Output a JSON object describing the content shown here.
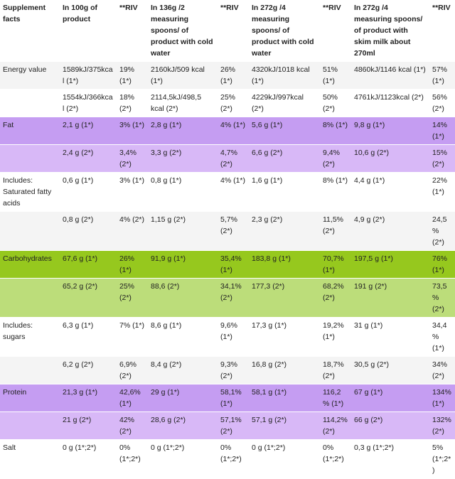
{
  "header": [
    "Supplement facts",
    "In 100g of product",
    "**RIV",
    "In 136g /2 measuring spoons/ of product with cold water",
    "**RIV",
    "In 272g /4 measuring spoons/ of product with cold water",
    "**RIV",
    "In 272g /4 measuring spoons/ of product with skim milk about 270ml",
    "**RIV"
  ],
  "rows": [
    {
      "style": "bg-grey",
      "cells": [
        "Energy value",
        "1589kJ/375kcal (1*)",
        "19% (1*)",
        "2160kJ/509 kcal (1*)",
        "26% (1*)",
        "4320kJ/1018 kcal (1*)",
        "51% (1*)",
        "4860kJ/1146 kcal (1*)",
        "57% (1*)"
      ]
    },
    {
      "style": "bg-white",
      "cells": [
        "",
        "1554kJ/366kcal (2*)",
        "18% (2*)",
        "2114,5kJ/498,5 kcal (2*)",
        "25% (2*)",
        "4229kJ/997kcal (2*)",
        "50% (2*)",
        "4761kJ/1123kcal (2*)",
        "56% (2*)"
      ]
    },
    {
      "style": "bg-purple",
      "cells": [
        "Fat",
        "2,1 g (1*)",
        "3% (1*)",
        "2,8 g (1*)",
        "4% (1*)",
        "5,6 g (1*)",
        "8% (1*)",
        "9,8 g (1*)",
        "14% (1*)"
      ]
    },
    {
      "style": "bg-purple-light",
      "cells": [
        "",
        "2,4 g (2*)",
        "3,4% (2*)",
        "3,3 g (2*)",
        "4,7% (2*)",
        "6,6 g (2*)",
        "9,4% (2*)",
        "10,6 g (2*)",
        "15% (2*)"
      ]
    },
    {
      "style": "bg-white",
      "cells": [
        "Includes: Saturated fatty acids",
        "0,6 g (1*)",
        "3% (1*)",
        "0,8 g (1*)",
        "4% (1*)",
        "1,6 g (1*)",
        "8% (1*)",
        "4,4 g (1*)",
        "22% (1*)"
      ]
    },
    {
      "style": "bg-grey",
      "cells": [
        "",
        "0,8 g (2*)",
        "4% (2*)",
        "1,15 g (2*)",
        "5,7% (2*)",
        "2,3 g (2*)",
        "11,5% (2*)",
        "4,9 g (2*)",
        "24,5% (2*)"
      ]
    },
    {
      "style": "bg-green",
      "cells": [
        "Carbohydrates",
        "67,6 g (1*)",
        "26% (1*)",
        "91,9 g (1*)",
        "35,4% (1*)",
        "183,8 g (1*)",
        "70,7% (1*)",
        "197,5 g (1*)",
        "76% (1*)"
      ]
    },
    {
      "style": "bg-green-light",
      "cells": [
        "",
        "65,2 g (2*)",
        "25% (2*)",
        "88,6 (2*)",
        "34,1% (2*)",
        "177,3 (2*)",
        "68,2% (2*)",
        "191 g (2*)",
        "73,5% (2*)"
      ]
    },
    {
      "style": "bg-white",
      "cells": [
        "Includes: sugars",
        "6,3 g (1*)",
        "7% (1*)",
        "8,6 g (1*)",
        "9,6% (1*)",
        "17,3 g (1*)",
        "19,2% (1*)",
        "31 g (1*)",
        "34,4% (1*)"
      ]
    },
    {
      "style": "bg-grey",
      "cells": [
        "",
        "6,2 g (2*)",
        "6,9% (2*)",
        "8,4 g (2*)",
        "9,3% (2*)",
        "16,8 g (2*)",
        "18,7% (2*)",
        "30,5 g (2*)",
        "34% (2*)"
      ]
    },
    {
      "style": "bg-purple",
      "cells": [
        "Protein",
        "21,3 g (1*)",
        "42,6% (1*)",
        "29 g (1*)",
        "58,1% (1*)",
        "58,1 g (1*)",
        "116,2 % (1*)",
        "67 g (1*)",
        "134% (1*)"
      ]
    },
    {
      "style": "bg-purple-light",
      "cells": [
        "",
        "21 g (2*)",
        "42% (2*)",
        "28,6 g (2*)",
        "57,1% (2*)",
        "57,1 g (2*)",
        "114,2% (2*)",
        "66 g (2*)",
        "132% (2*)"
      ]
    },
    {
      "style": "bg-white",
      "cells": [
        "Salt",
        "0 g (1*;2*)",
        "0% (1*;2*)",
        "0 g (1*;2*)",
        "0% (1*;2*)",
        "0 g (1*;2*)",
        "0% (1*;2*)",
        "0,3 g (1*;2*)",
        "5% (1*;2*)"
      ]
    }
  ],
  "colors": {
    "purple": "#c59df2",
    "purple_light": "#d8b8f7",
    "green": "#96c81e",
    "green_light": "#bcdd7a",
    "grey": "#f4f4f4"
  }
}
